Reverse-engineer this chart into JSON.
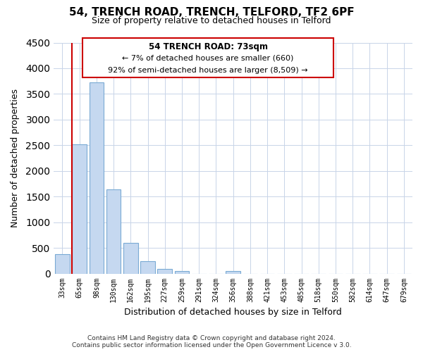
{
  "title": "54, TRENCH ROAD, TRENCH, TELFORD, TF2 6PF",
  "subtitle": "Size of property relative to detached houses in Telford",
  "xlabel": "Distribution of detached houses by size in Telford",
  "ylabel": "Number of detached properties",
  "bar_labels": [
    "33sqm",
    "65sqm",
    "98sqm",
    "130sqm",
    "162sqm",
    "195sqm",
    "227sqm",
    "259sqm",
    "291sqm",
    "324sqm",
    "356sqm",
    "388sqm",
    "421sqm",
    "453sqm",
    "485sqm",
    "518sqm",
    "550sqm",
    "582sqm",
    "614sqm",
    "647sqm",
    "679sqm"
  ],
  "bar_values": [
    380,
    2520,
    3720,
    1640,
    600,
    240,
    90,
    55,
    0,
    0,
    55,
    0,
    0,
    0,
    0,
    0,
    0,
    0,
    0,
    0,
    0
  ],
  "bar_color": "#c5d8f0",
  "bar_edge_color": "#7aaad4",
  "highlight_line_color": "#cc0000",
  "annotation_title": "54 TRENCH ROAD: 73sqm",
  "annotation_line1": "← 7% of detached houses are smaller (660)",
  "annotation_line2": "92% of semi-detached houses are larger (8,509) →",
  "annotation_box_color": "#ffffff",
  "annotation_box_edge": "#cc0000",
  "ylim": [
    0,
    4500
  ],
  "yticks": [
    0,
    500,
    1000,
    1500,
    2000,
    2500,
    3000,
    3500,
    4000,
    4500
  ],
  "footer_line1": "Contains HM Land Registry data © Crown copyright and database right 2024.",
  "footer_line2": "Contains public sector information licensed under the Open Government Licence v 3.0.",
  "background_color": "#ffffff",
  "grid_color": "#c8d4e8"
}
